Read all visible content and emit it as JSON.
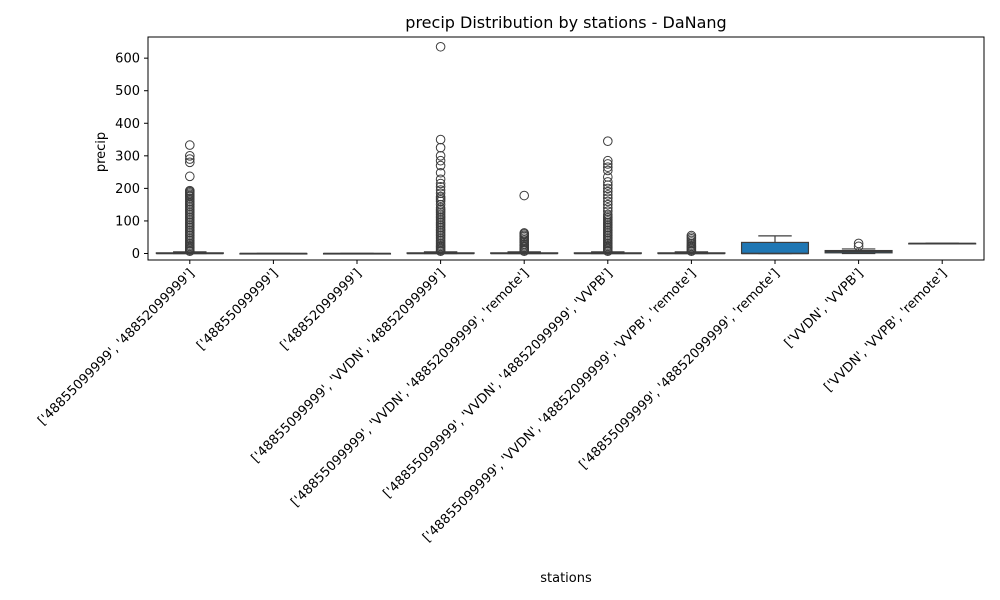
{
  "chart_data": {
    "type": "box",
    "title": "precip Distribution by stations - DaNang",
    "xlabel": "stations",
    "ylabel": "precip",
    "ylim": [
      -20,
      665
    ],
    "yticks": [
      0,
      100,
      200,
      300,
      400,
      500,
      600
    ],
    "box_color": "#1f77b4",
    "categories": [
      "['48855099999', '48852099999']",
      "['48855099999']",
      "['48852099999']",
      "['48855099999', 'VVDN', '48852099999']",
      "['48855099999', 'VVDN', '48852099999', 'remote']",
      "['48855099999', 'VVDN', '48852099999', 'VVPB']",
      "['48855099999', 'VVDN', '48852099999', 'VVPB', 'remote']",
      "['48855099999', '48852099999', 'remote']",
      "['VVDN', 'VVPB']",
      "['VVDN', 'VVPB', 'remote']"
    ],
    "boxes": [
      {
        "whislo": 0,
        "q1": 0,
        "med": 0,
        "q3": 2,
        "whishi": 5,
        "fliers": [
          7,
          10,
          14,
          18,
          22,
          26,
          30,
          35,
          40,
          45,
          50,
          55,
          60,
          65,
          70,
          75,
          80,
          85,
          90,
          95,
          100,
          105,
          110,
          115,
          120,
          125,
          130,
          135,
          140,
          145,
          150,
          155,
          160,
          165,
          170,
          175,
          178,
          182,
          186,
          190,
          193,
          237,
          280,
          290,
          300,
          333
        ]
      },
      {
        "whislo": 0,
        "q1": 0,
        "med": 0,
        "q3": 0,
        "whishi": 0,
        "fliers": []
      },
      {
        "whislo": 0,
        "q1": 0,
        "med": 0,
        "q3": 0,
        "whishi": 0,
        "fliers": []
      },
      {
        "whislo": 0,
        "q1": 0,
        "med": 0,
        "q3": 2,
        "whishi": 5,
        "fliers": [
          7,
          10,
          14,
          18,
          22,
          26,
          30,
          35,
          40,
          45,
          50,
          55,
          60,
          65,
          70,
          75,
          80,
          85,
          90,
          95,
          100,
          105,
          110,
          115,
          120,
          125,
          130,
          135,
          140,
          150,
          160,
          165,
          170,
          175,
          185,
          195,
          205,
          215,
          228,
          248,
          270,
          285,
          300,
          325,
          350,
          635
        ]
      },
      {
        "whislo": 0,
        "q1": 0,
        "med": 0,
        "q3": 2,
        "whishi": 5,
        "fliers": [
          7,
          10,
          13,
          16,
          20,
          24,
          28,
          33,
          38,
          42,
          47,
          52,
          56,
          60,
          63,
          178
        ]
      },
      {
        "whislo": 0,
        "q1": 0,
        "med": 0,
        "q3": 2,
        "whishi": 5,
        "fliers": [
          7,
          10,
          14,
          18,
          22,
          26,
          30,
          35,
          40,
          45,
          50,
          55,
          60,
          65,
          70,
          75,
          80,
          85,
          90,
          95,
          100,
          105,
          110,
          115,
          120,
          130,
          140,
          150,
          160,
          170,
          180,
          190,
          200,
          210,
          220,
          235,
          255,
          265,
          275,
          285,
          345
        ]
      },
      {
        "whislo": 0,
        "q1": 0,
        "med": 0,
        "q3": 2,
        "whishi": 5,
        "fliers": [
          7,
          10,
          14,
          18,
          22,
          26,
          30,
          35,
          40,
          45,
          50,
          55
        ]
      },
      {
        "whislo": 0,
        "q1": 0,
        "med": 0,
        "q3": 34,
        "whishi": 54,
        "fliers": []
      },
      {
        "whislo": 0,
        "q1": 2,
        "med": 6,
        "q3": 9,
        "whishi": 14,
        "fliers": [
          22,
          31
        ]
      },
      {
        "whislo": 31,
        "q1": 31,
        "med": 31,
        "q3": 31,
        "whishi": 31,
        "fliers": []
      }
    ]
  }
}
